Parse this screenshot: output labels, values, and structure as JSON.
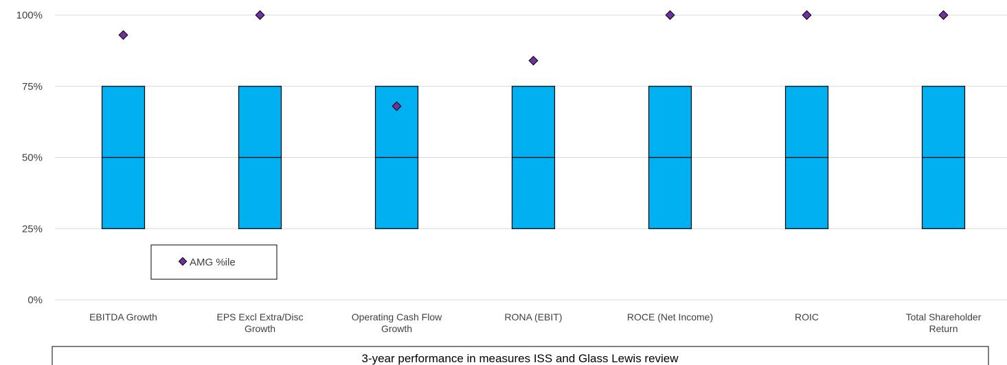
{
  "chart_data": {
    "type": "bar",
    "subtype": "floating-box-with-markers",
    "categories": [
      [
        "EBITDA Growth"
      ],
      [
        "EPS Excl Extra/Disc",
        "Growth"
      ],
      [
        "Operating Cash Flow",
        "Growth"
      ],
      [
        "RONA (EBIT)"
      ],
      [
        "ROCE (Net Income)"
      ],
      [
        "ROIC"
      ],
      [
        "Total Shareholder",
        "Return"
      ]
    ],
    "box": {
      "low": 25,
      "mid": 50,
      "high": 75,
      "color": "#00B0F0"
    },
    "series": [
      {
        "name": "AMG %ile",
        "values": [
          93,
          100,
          68,
          84,
          100,
          100,
          100
        ],
        "color": "#7030A0"
      }
    ],
    "yticks": [
      "0%",
      "25%",
      "50%",
      "75%",
      "100%"
    ],
    "ylim": [
      0,
      100
    ],
    "grid": true,
    "legend": "bottom-left",
    "footer": "3-year performance in measures ISS and Glass Lewis review"
  }
}
